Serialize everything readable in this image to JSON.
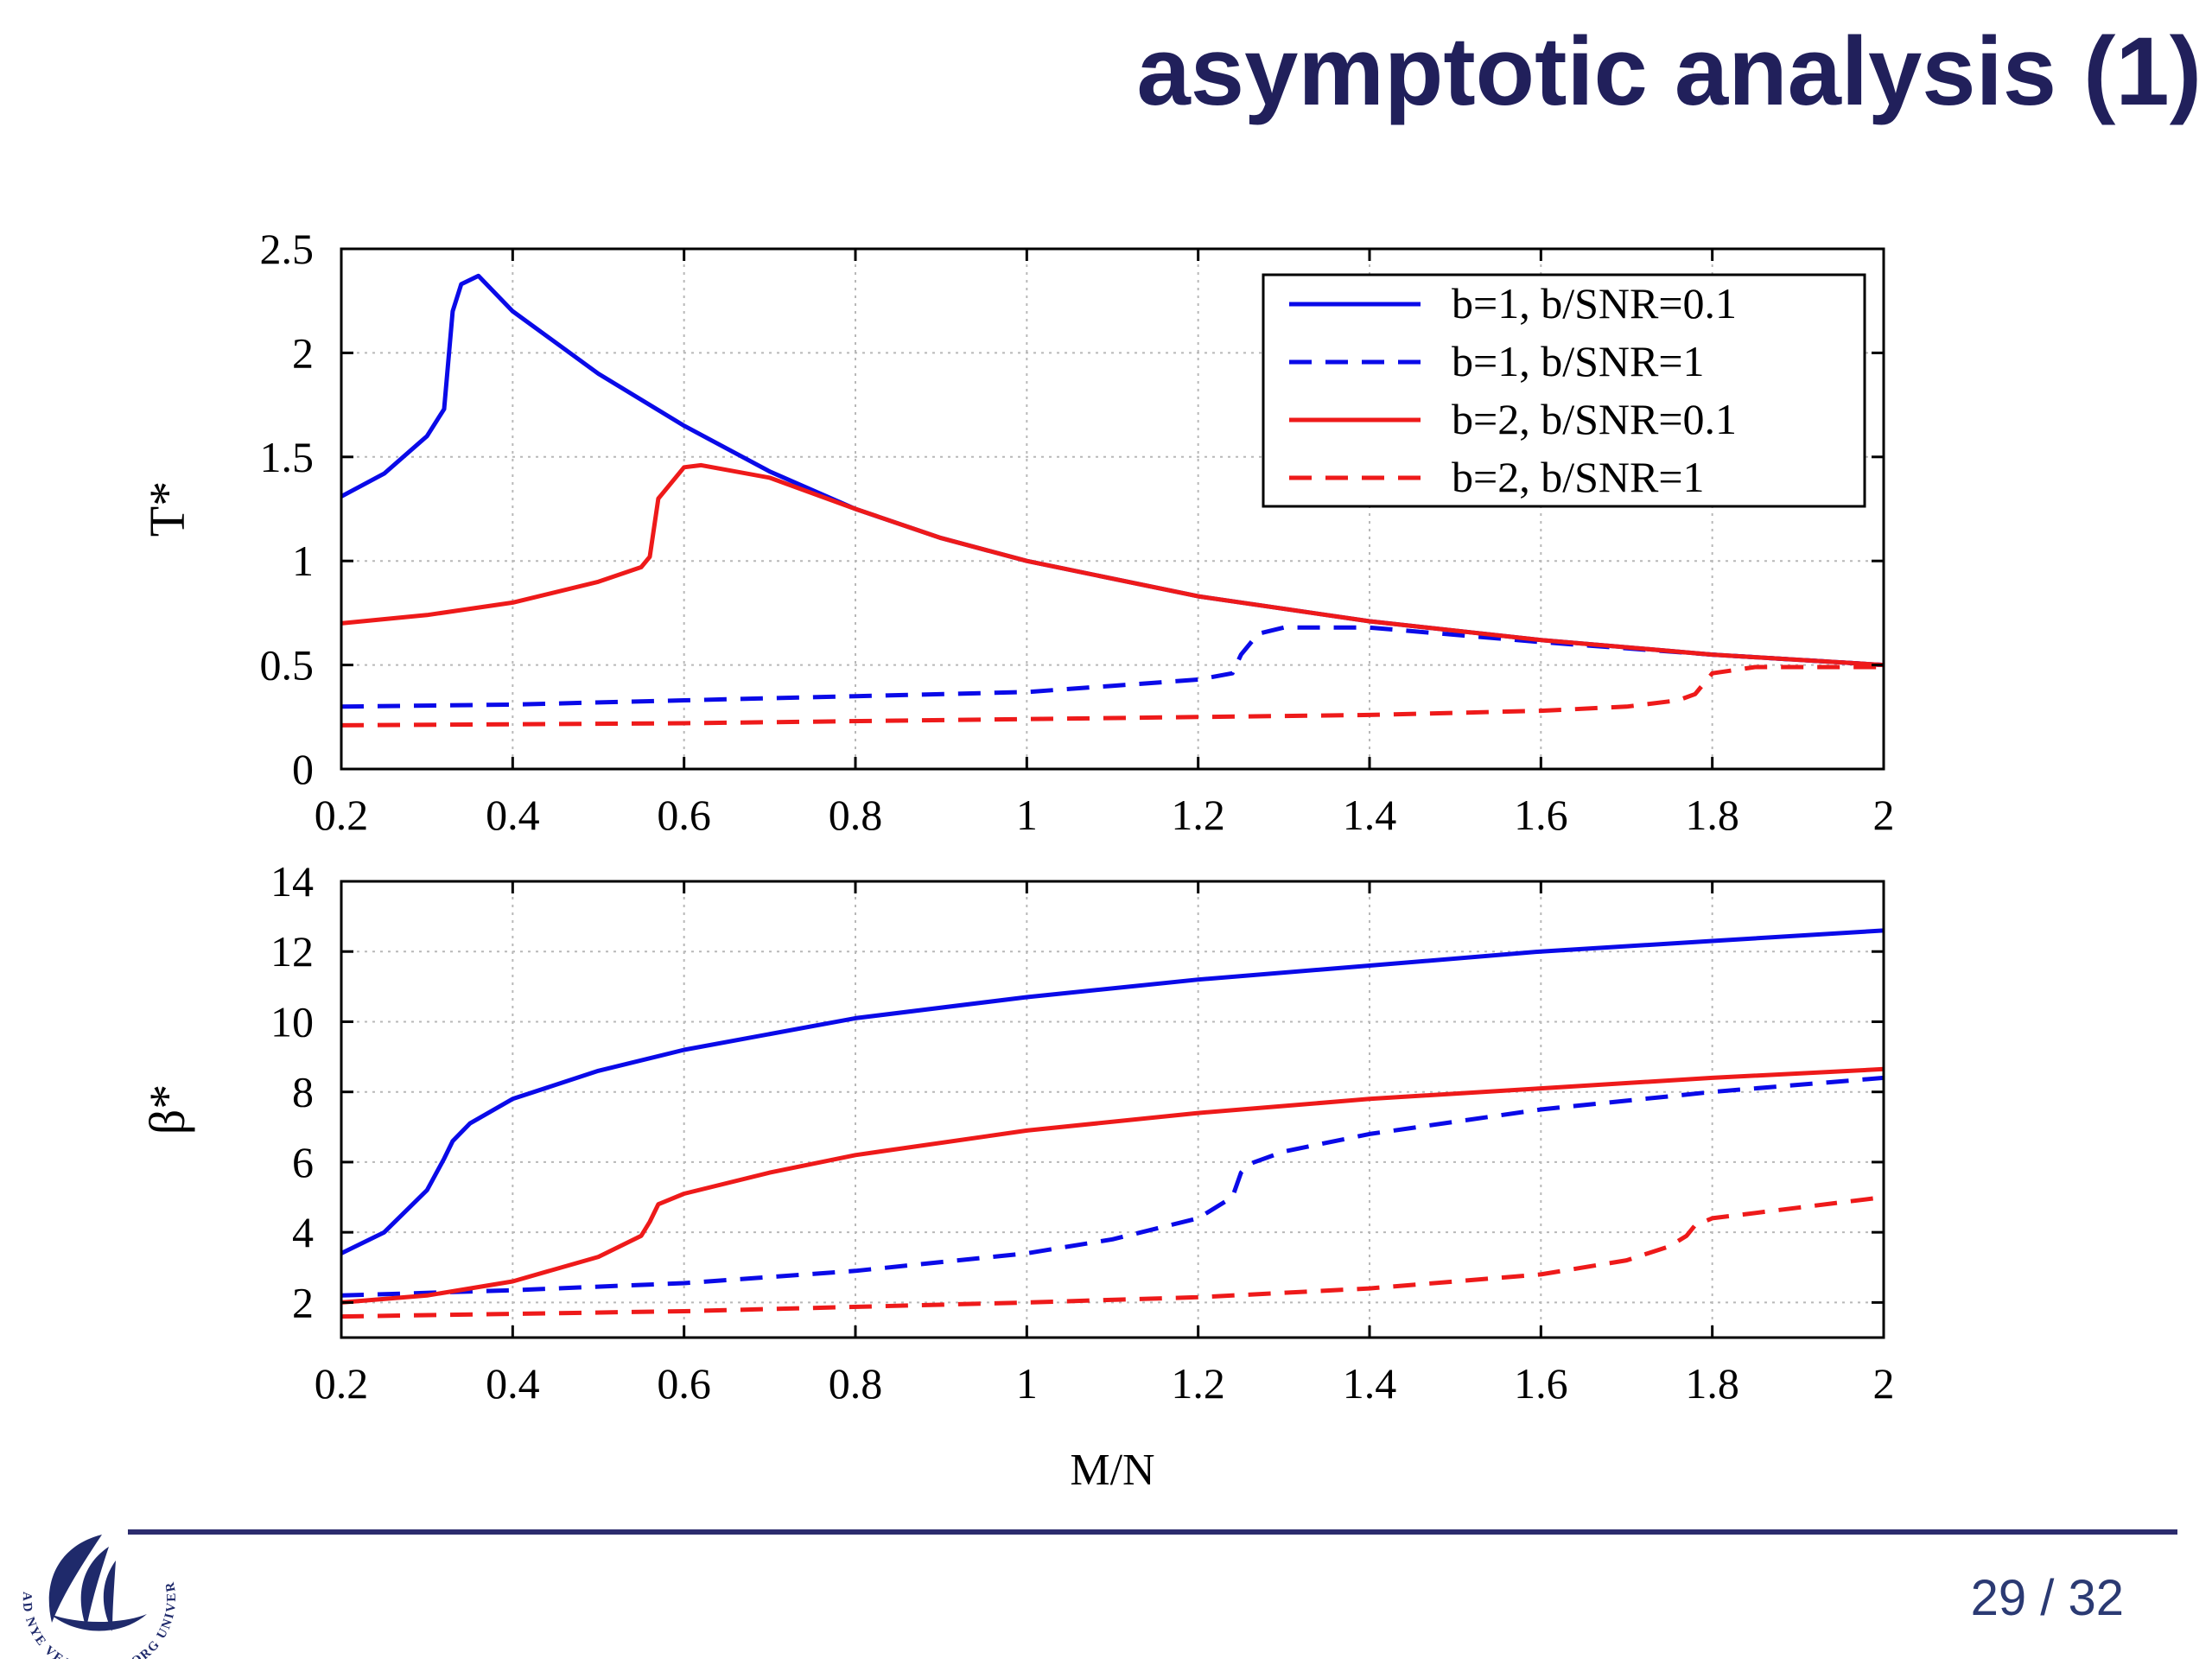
{
  "slide": {
    "title": "asymptotic analysis (1)",
    "page_number": "29 / 32",
    "logo_text": "AD NYE VEJE · AALBORG UNIVERSITET"
  },
  "colors": {
    "blue": "#0a0ae8",
    "red": "#ee1a1a",
    "title": "#21205b",
    "footer_rule": "#2c2c6e"
  },
  "chart_data": [
    {
      "type": "line",
      "ylabel": "T*",
      "xlabel": "",
      "xlim": [
        0.2,
        2
      ],
      "ylim": [
        0,
        2.5
      ],
      "xticks": [
        "0.2",
        "0.4",
        "0.6",
        "0.8",
        "1",
        "1.2",
        "1.4",
        "1.6",
        "1.8",
        "2"
      ],
      "yticks": [
        "0",
        "0.5",
        "1",
        "1.5",
        "2",
        "2.5"
      ],
      "grid": true,
      "legend_position": "top-right",
      "series": [
        {
          "name": "b=1, b/SNR=0.1",
          "color": "blue",
          "dash": "solid",
          "x": [
            0.2,
            0.25,
            0.3,
            0.32,
            0.33,
            0.34,
            0.36,
            0.4,
            0.5,
            0.6,
            0.7,
            0.8,
            0.9,
            1.0,
            1.2,
            1.4,
            1.6,
            1.8,
            2.0
          ],
          "y": [
            1.31,
            1.42,
            1.6,
            1.73,
            2.2,
            2.33,
            2.37,
            2.2,
            1.9,
            1.65,
            1.43,
            1.25,
            1.11,
            1.0,
            0.83,
            0.71,
            0.62,
            0.55,
            0.5
          ]
        },
        {
          "name": "b=1, b/SNR=1",
          "color": "blue",
          "dash": "dashed",
          "x": [
            0.2,
            0.4,
            0.6,
            0.8,
            1.0,
            1.1,
            1.2,
            1.24,
            1.25,
            1.27,
            1.3,
            1.4,
            1.6,
            1.8,
            2.0
          ],
          "y": [
            0.3,
            0.31,
            0.33,
            0.35,
            0.37,
            0.4,
            0.43,
            0.46,
            0.55,
            0.65,
            0.68,
            0.68,
            0.61,
            0.55,
            0.5
          ]
        },
        {
          "name": "b=2, b/SNR=0.1",
          "color": "red",
          "dash": "solid",
          "x": [
            0.2,
            0.3,
            0.4,
            0.5,
            0.55,
            0.56,
            0.57,
            0.6,
            0.62,
            0.7,
            0.8,
            0.9,
            1.0,
            1.2,
            1.4,
            1.6,
            1.8,
            2.0
          ],
          "y": [
            0.7,
            0.74,
            0.8,
            0.9,
            0.97,
            1.02,
            1.3,
            1.45,
            1.46,
            1.4,
            1.25,
            1.11,
            1.0,
            0.83,
            0.71,
            0.62,
            0.55,
            0.5
          ]
        },
        {
          "name": "b=2, b/SNR=1",
          "color": "red",
          "dash": "dashed",
          "x": [
            0.2,
            0.6,
            1.0,
            1.4,
            1.6,
            1.7,
            1.76,
            1.78,
            1.8,
            1.85,
            2.0
          ],
          "y": [
            0.21,
            0.22,
            0.24,
            0.26,
            0.28,
            0.3,
            0.33,
            0.36,
            0.46,
            0.49,
            0.49
          ]
        }
      ]
    },
    {
      "type": "line",
      "ylabel": "β*",
      "xlabel": "M/N",
      "xlim": [
        0.2,
        2
      ],
      "ylim": [
        1,
        14
      ],
      "xticks": [
        "0.2",
        "0.4",
        "0.6",
        "0.8",
        "1",
        "1.2",
        "1.4",
        "1.6",
        "1.8",
        "2"
      ],
      "yticks": [
        "2",
        "4",
        "6",
        "8",
        "10",
        "12",
        "14"
      ],
      "grid": true,
      "series": [
        {
          "name": "b=1, b/SNR=0.1",
          "color": "blue",
          "dash": "solid",
          "x": [
            0.2,
            0.25,
            0.3,
            0.32,
            0.33,
            0.35,
            0.4,
            0.5,
            0.6,
            0.8,
            1.0,
            1.2,
            1.4,
            1.6,
            1.8,
            2.0
          ],
          "y": [
            3.4,
            4.0,
            5.2,
            6.1,
            6.6,
            7.1,
            7.8,
            8.6,
            9.2,
            10.1,
            10.7,
            11.2,
            11.6,
            12.0,
            12.3,
            12.6
          ]
        },
        {
          "name": "b=1, b/SNR=1",
          "color": "blue",
          "dash": "dashed",
          "x": [
            0.2,
            0.4,
            0.6,
            0.8,
            1.0,
            1.1,
            1.2,
            1.24,
            1.25,
            1.26,
            1.3,
            1.4,
            1.6,
            1.8,
            2.0
          ],
          "y": [
            2.2,
            2.35,
            2.55,
            2.9,
            3.4,
            3.8,
            4.4,
            5.0,
            5.7,
            5.95,
            6.3,
            6.8,
            7.5,
            8.0,
            8.4
          ]
        },
        {
          "name": "b=2, b/SNR=0.1",
          "color": "red",
          "dash": "solid",
          "x": [
            0.2,
            0.3,
            0.4,
            0.5,
            0.55,
            0.56,
            0.57,
            0.6,
            0.7,
            0.8,
            1.0,
            1.2,
            1.4,
            1.6,
            1.8,
            2.0
          ],
          "y": [
            2.0,
            2.2,
            2.6,
            3.3,
            3.9,
            4.3,
            4.8,
            5.1,
            5.7,
            6.2,
            6.9,
            7.4,
            7.8,
            8.1,
            8.4,
            8.65
          ]
        },
        {
          "name": "b=2, b/SNR=1",
          "color": "red",
          "dash": "dashed",
          "x": [
            0.2,
            0.6,
            1.0,
            1.2,
            1.4,
            1.6,
            1.7,
            1.75,
            1.77,
            1.78,
            1.8,
            1.9,
            2.0
          ],
          "y": [
            1.6,
            1.75,
            2.0,
            2.15,
            2.4,
            2.8,
            3.2,
            3.6,
            3.9,
            4.2,
            4.4,
            4.7,
            5.0
          ]
        }
      ]
    }
  ]
}
